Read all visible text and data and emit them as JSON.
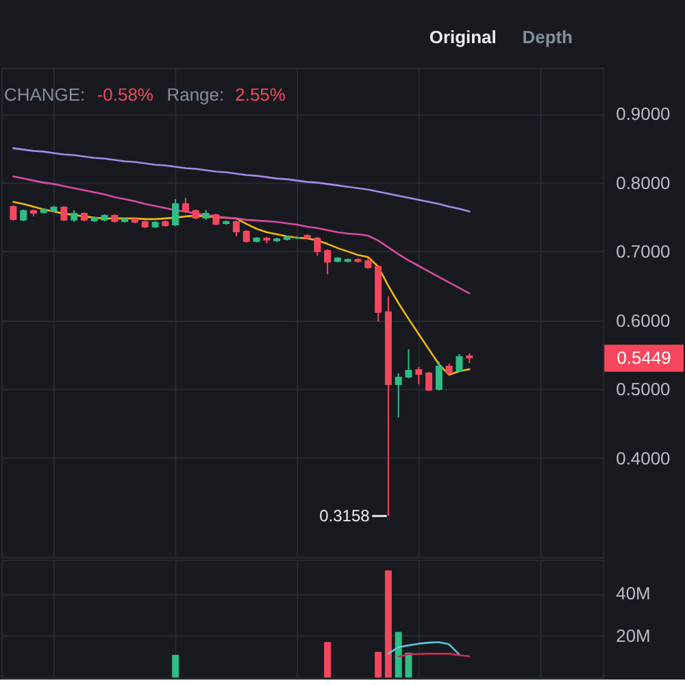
{
  "chart_data": [
    {
      "type": "candlestick",
      "categories": [
        null,
        null,
        null,
        null,
        null,
        null,
        null,
        null,
        null,
        null,
        null,
        null,
        null,
        null,
        null,
        null,
        null,
        null,
        null,
        null,
        null,
        null,
        null,
        null,
        null,
        null,
        null,
        null,
        null,
        null,
        null,
        null,
        null,
        null,
        null,
        null,
        null,
        null,
        null,
        null,
        null,
        null,
        null,
        null,
        null,
        null,
        null,
        null,
        null,
        null,
        null,
        null,
        null,
        null,
        null,
        null,
        null,
        null
      ],
      "ohlc": [
        [
          0.766,
          0.767,
          0.745,
          0.746
        ],
        [
          0.745,
          0.761,
          0.744,
          0.76
        ],
        [
          0.76,
          0.761,
          0.751,
          0.755
        ],
        [
          0.756,
          0.763,
          0.755,
          0.762
        ],
        [
          0.758,
          0.766,
          0.757,
          0.765
        ],
        [
          0.765,
          0.766,
          0.744,
          0.745
        ],
        [
          0.745,
          0.76,
          0.743,
          0.756
        ],
        [
          0.756,
          0.757,
          0.744,
          0.745
        ],
        [
          0.744,
          0.751,
          0.743,
          0.75
        ],
        [
          0.745,
          0.754,
          0.744,
          0.753
        ],
        [
          0.753,
          0.754,
          0.742,
          0.743
        ],
        [
          0.743,
          0.749,
          0.742,
          0.748
        ],
        [
          0.748,
          0.749,
          0.741,
          0.742
        ],
        [
          0.744,
          0.745,
          0.734,
          0.735
        ],
        [
          0.735,
          0.744,
          0.734,
          0.743
        ],
        [
          0.744,
          0.745,
          0.736,
          0.737
        ],
        [
          0.738,
          0.776,
          0.737,
          0.77
        ],
        [
          0.77,
          0.778,
          0.756,
          0.758
        ],
        [
          0.76,
          0.761,
          0.747,
          0.748
        ],
        [
          0.748,
          0.76,
          0.746,
          0.756
        ],
        [
          0.754,
          0.755,
          0.738,
          0.739
        ],
        [
          0.74,
          0.745,
          0.739,
          0.744
        ],
        [
          0.744,
          0.745,
          0.722,
          0.728
        ],
        [
          0.73,
          0.731,
          0.713,
          0.714
        ],
        [
          0.714,
          0.721,
          0.713,
          0.72
        ],
        [
          0.72,
          0.721,
          0.712,
          0.716
        ],
        [
          0.715,
          0.72,
          0.714,
          0.719
        ],
        [
          0.717,
          0.723,
          0.716,
          0.722
        ],
        [
          0.719,
          0.722,
          0.718,
          0.721
        ],
        [
          0.724,
          0.725,
          0.718,
          0.719
        ],
        [
          0.72,
          0.721,
          0.694,
          0.699
        ],
        [
          0.702,
          0.703,
          0.667,
          0.684
        ],
        [
          0.685,
          0.692,
          0.684,
          0.691
        ],
        [
          0.685,
          0.69,
          0.684,
          0.689
        ],
        [
          0.689,
          0.69,
          0.684,
          0.685
        ],
        [
          0.687,
          0.691,
          0.675,
          0.676
        ],
        [
          0.679,
          0.68,
          0.598,
          0.611
        ],
        [
          0.613,
          0.635,
          0.3158,
          0.506
        ],
        [
          0.506,
          0.523,
          0.459,
          0.518
        ],
        [
          0.517,
          0.558,
          0.516,
          0.528
        ],
        [
          0.529,
          0.532,
          0.507,
          0.521
        ],
        [
          0.524,
          0.525,
          0.497,
          0.498
        ],
        [
          0.499,
          0.54,
          0.498,
          0.534
        ],
        [
          0.534,
          0.537,
          0.521,
          0.523
        ],
        [
          0.526,
          0.551,
          0.525,
          0.548
        ],
        [
          0.549,
          0.552,
          0.538,
          0.5449
        ],
        null,
        null,
        null,
        null,
        null,
        null,
        null,
        null,
        null,
        null,
        null,
        null
      ],
      "colors": [
        "#f6465d",
        "#2ebd85",
        "#f6465d",
        "#2ebd85",
        "#2ebd85",
        "#f6465d",
        "#2ebd85",
        "#f6465d",
        "#2ebd85",
        "#2ebd85",
        "#f6465d",
        "#2ebd85",
        "#f6465d",
        "#f6465d",
        "#2ebd85",
        "#f6465d",
        "#2ebd85",
        "#f6465d",
        "#f6465d",
        "#2ebd85",
        "#f6465d",
        "#2ebd85",
        "#f6465d",
        "#f6465d",
        "#2ebd85",
        "#f6465d",
        "#2ebd85",
        "#2ebd85",
        "#2ebd85",
        "#f6465d",
        "#f6465d",
        "#f6465d",
        "#2ebd85",
        "#2ebd85",
        "#f6465d",
        "#f6465d",
        "#f6465d",
        "#f6465d",
        "#2ebd85",
        "#2ebd85",
        "#f6465d",
        "#f6465d",
        "#2ebd85",
        "#f6465d",
        "#2ebd85",
        "#f6465d",
        null,
        null,
        null,
        null,
        null,
        null,
        null,
        null,
        null,
        null,
        null,
        null
      ],
      "series": [
        {
          "type": "line",
          "color": "#f0b90b",
          "values": [
            0.772,
            0.769,
            0.765,
            0.761,
            0.758,
            0.755,
            0.753,
            0.751,
            0.749,
            0.748,
            0.748,
            0.748,
            0.748,
            0.747,
            0.747,
            0.748,
            0.749,
            0.751,
            0.752,
            0.751,
            0.75,
            0.749,
            0.748,
            0.74,
            0.733,
            0.728,
            0.725,
            0.722,
            0.72,
            0.719,
            0.716,
            0.711,
            0.705,
            0.7,
            0.695,
            0.692,
            0.678,
            0.65,
            0.625,
            0.602,
            0.58,
            0.558,
            0.536,
            0.521,
            0.526,
            0.529,
            null,
            null,
            null,
            null,
            null,
            null,
            null,
            null,
            null,
            null,
            null,
            null
          ]
        },
        {
          "type": "line",
          "color": "#d74aa3",
          "values": [
            0.809,
            0.806,
            0.803,
            0.8,
            0.798,
            0.795,
            0.792,
            0.789,
            0.786,
            0.783,
            0.779,
            0.776,
            0.773,
            0.769,
            0.766,
            0.763,
            0.76,
            0.758,
            0.755,
            0.753,
            0.751,
            0.749,
            0.748,
            0.746,
            0.745,
            0.744,
            0.743,
            0.741,
            0.739,
            0.736,
            0.734,
            0.731,
            0.728,
            0.726,
            0.725,
            0.723,
            0.716,
            0.706,
            0.696,
            0.687,
            0.679,
            0.671,
            0.663,
            0.655,
            0.647,
            0.639,
            null,
            null,
            null,
            null,
            null,
            null,
            null,
            null,
            null,
            null,
            null,
            null
          ]
        },
        {
          "type": "line",
          "color": "#a48bea",
          "values": [
            0.85,
            0.848,
            0.846,
            0.845,
            0.843,
            0.841,
            0.84,
            0.838,
            0.836,
            0.835,
            0.833,
            0.831,
            0.83,
            0.828,
            0.826,
            0.825,
            0.823,
            0.821,
            0.82,
            0.818,
            0.816,
            0.815,
            0.813,
            0.811,
            0.81,
            0.808,
            0.806,
            0.805,
            0.803,
            0.801,
            0.8,
            0.798,
            0.796,
            0.794,
            0.792,
            0.79,
            0.787,
            0.784,
            0.781,
            0.778,
            0.775,
            0.772,
            0.769,
            0.765,
            0.762,
            0.758,
            null,
            null,
            null,
            null,
            null,
            null,
            null,
            null,
            null,
            null,
            null,
            null
          ]
        }
      ],
      "ylim": [
        0.256,
        0.967
      ],
      "yticks": [
        {
          "value": 0.4,
          "label": "0.4000"
        },
        {
          "value": 0.5,
          "label": "0.5000"
        },
        {
          "value": 0.6,
          "label": "0.6000"
        },
        {
          "value": 0.7,
          "label": "0.7000"
        },
        {
          "value": 0.8,
          "label": "0.8000"
        },
        {
          "value": 0.9,
          "label": "0.9000"
        }
      ],
      "grid": true,
      "tick_labels": "y",
      "annotations": [
        "Original",
        "Depth",
        "CHANGE:",
        "-0.58%",
        "Range:",
        "2.55%",
        "0.3158",
        "0.5449"
      ]
    },
    {
      "type": "bar",
      "categories": [
        null,
        null,
        null,
        null,
        null,
        null,
        null,
        null,
        null,
        null,
        null,
        null,
        null,
        null,
        null,
        null,
        null,
        null,
        null,
        null,
        null,
        null,
        null,
        null,
        null,
        null,
        null,
        null,
        null,
        null,
        null,
        null,
        null,
        null,
        null,
        null,
        null,
        null,
        null,
        null,
        null,
        null,
        null,
        null,
        null,
        null,
        null,
        null,
        null,
        null,
        null,
        null,
        null,
        null,
        null,
        null,
        null,
        null
      ],
      "series": [
        {
          "type": "bar",
          "values": [
            null,
            null,
            null,
            null,
            null,
            null,
            null,
            null,
            null,
            null,
            null,
            null,
            null,
            null,
            null,
            null,
            10.8,
            null,
            null,
            null,
            null,
            null,
            null,
            null,
            null,
            null,
            null,
            null,
            null,
            null,
            null,
            16.9,
            null,
            null,
            null,
            null,
            12.2,
            51.0,
            21.7,
            11.8,
            null,
            null,
            null,
            null,
            null,
            null,
            null,
            null,
            null,
            null,
            null,
            null,
            null,
            null,
            null,
            null,
            null,
            null
          ],
          "colors": [
            "#f6465d",
            "#2ebd85",
            "#f6465d",
            "#2ebd85",
            "#2ebd85",
            "#f6465d",
            "#2ebd85",
            "#f6465d",
            "#2ebd85",
            "#2ebd85",
            "#f6465d",
            "#2ebd85",
            "#f6465d",
            "#f6465d",
            "#2ebd85",
            "#f6465d",
            "#2ebd85",
            "#f6465d",
            "#f6465d",
            "#2ebd85",
            "#f6465d",
            "#2ebd85",
            "#f6465d",
            "#f6465d",
            "#2ebd85",
            "#f6465d",
            "#2ebd85",
            "#2ebd85",
            "#2ebd85",
            "#f6465d",
            "#f6465d",
            "#f6465d",
            "#2ebd85",
            "#2ebd85",
            "#f6465d",
            "#f6465d",
            "#f6465d",
            "#f6465d",
            "#2ebd85",
            "#2ebd85",
            "#f6465d",
            "#f6465d",
            "#2ebd85",
            "#f6465d",
            "#2ebd85",
            "#f6465d",
            null,
            null,
            null,
            null,
            null,
            null,
            null,
            null,
            null,
            null,
            null,
            null
          ]
        },
        {
          "type": "line",
          "color": "#5fc3de",
          "values": [
            null,
            null,
            null,
            null,
            null,
            null,
            null,
            null,
            null,
            null,
            null,
            null,
            null,
            null,
            null,
            null,
            null,
            null,
            null,
            null,
            null,
            null,
            null,
            null,
            null,
            null,
            null,
            null,
            null,
            null,
            null,
            null,
            null,
            null,
            null,
            null,
            null,
            11.4,
            14.4,
            15.3,
            16.1,
            16.6,
            16.8,
            15.8,
            10.9,
            null,
            null,
            null,
            null,
            null,
            null,
            null,
            null,
            null,
            null,
            null,
            null,
            null
          ]
        },
        {
          "type": "line",
          "color": "#c9305b",
          "values": [
            null,
            null,
            null,
            null,
            null,
            null,
            null,
            null,
            null,
            null,
            null,
            null,
            null,
            null,
            null,
            null,
            null,
            null,
            null,
            null,
            null,
            null,
            null,
            null,
            null,
            null,
            null,
            null,
            null,
            null,
            null,
            null,
            null,
            null,
            null,
            null,
            null,
            null,
            9.9,
            11.0,
            11.2,
            11.3,
            11.3,
            11.3,
            10.6,
            10.1,
            null,
            null,
            null,
            null,
            null,
            null,
            null,
            null,
            null,
            null,
            null,
            null
          ]
        }
      ],
      "ylim": [
        0,
        56
      ],
      "yticks": [
        {
          "value": 20,
          "label": "20M"
        },
        {
          "value": 40,
          "label": "40M"
        }
      ],
      "grid": true,
      "tick_labels": "y"
    }
  ]
}
